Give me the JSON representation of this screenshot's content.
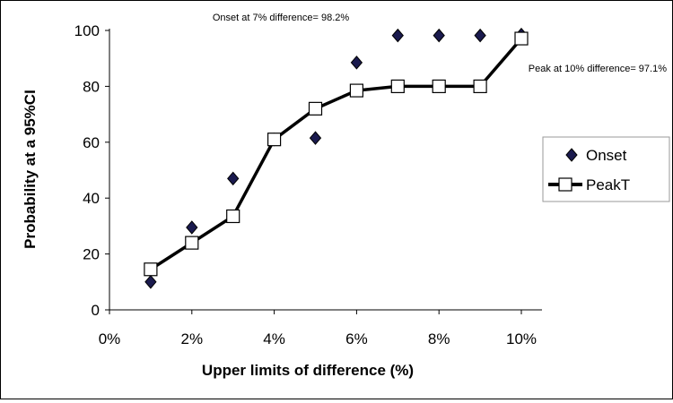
{
  "chart_data": {
    "type": "scatter",
    "title": "",
    "xlabel": "Upper limits of difference (%)",
    "ylabel": "Probability at a 95%CI",
    "xlim": [
      0,
      10
    ],
    "ylim": [
      0,
      100
    ],
    "x_ticks": [
      0,
      2,
      4,
      6,
      8,
      10
    ],
    "x_tick_labels": [
      "0%",
      "2%",
      "4%",
      "6%",
      "8%",
      "10%"
    ],
    "y_ticks": [
      0,
      20,
      40,
      60,
      80,
      100
    ],
    "y_tick_labels": [
      "0",
      "20",
      "40",
      "60",
      "80",
      "100"
    ],
    "grid": false,
    "legend_position": "right",
    "series": [
      {
        "name": "Onset",
        "kind": "scatter",
        "marker": "diamond",
        "color": "#1a1a4e",
        "x": [
          1,
          2,
          3,
          4,
          5,
          6,
          7,
          8,
          9,
          10
        ],
        "values": [
          10,
          29.5,
          47,
          61,
          61.5,
          88.5,
          98.2,
          98.2,
          98.2,
          98.5
        ]
      },
      {
        "name": "PeakT",
        "kind": "line",
        "marker": "square",
        "color": "#000000",
        "x": [
          1,
          2,
          3,
          4,
          5,
          6,
          7,
          8,
          9,
          10
        ],
        "values": [
          14.5,
          24,
          33.5,
          61,
          72,
          78.5,
          80,
          80,
          80,
          97.1
        ]
      }
    ],
    "annotations": [
      {
        "text": "Onset at 7% difference= 98.2%",
        "x": 7,
        "y": 98.2,
        "series": "Onset"
      },
      {
        "text": "Peak at 10% difference= 97.1%",
        "x": 10,
        "y": 97.1,
        "series": "PeakT"
      }
    ]
  }
}
